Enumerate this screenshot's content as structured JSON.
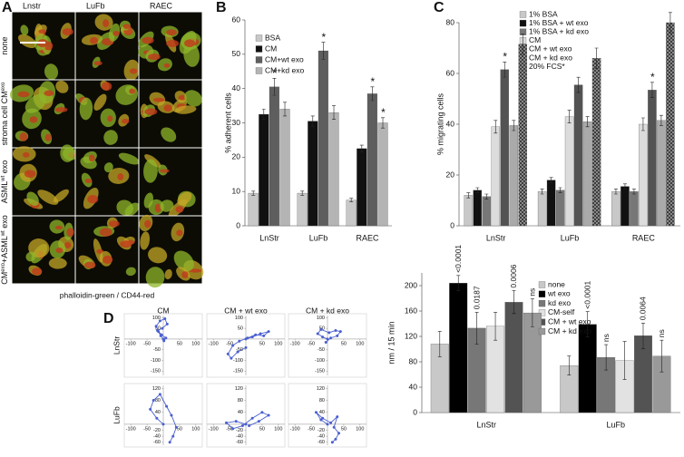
{
  "panel_letters": [
    "A",
    "B",
    "C",
    "D"
  ],
  "panel_a": {
    "columns": [
      "Lnstr",
      "LuFb",
      "RAEC"
    ],
    "rows": [
      [
        {
          "text": "none"
        }
      ],
      [
        {
          "text": "stroma cell CM"
        },
        {
          "sup": "exo"
        }
      ],
      [
        {
          "text": "ASML"
        },
        {
          "sup": "wt"
        },
        {
          "text": " exo"
        }
      ],
      [
        {
          "text": "CM"
        },
        {
          "sup": "exo"
        },
        {
          "text": "+ASML"
        },
        {
          "sup": "wt"
        },
        {
          "text": " exo"
        }
      ]
    ],
    "caption": "phalloidin-green / CD44-red"
  },
  "panel_d": {
    "columns": [
      "CM",
      "CM + wt exo",
      "CM + kd exo"
    ],
    "rows": [
      "LnStr",
      "LuFb"
    ]
  },
  "chart_data": [
    {
      "type": "bar",
      "ylabel": "% adherent cells",
      "categories": [
        "LnStr",
        "LuFb",
        "RAEC"
      ],
      "ylim": [
        0,
        60
      ],
      "yticks": [
        0,
        10,
        20,
        30,
        40,
        50,
        60
      ],
      "legend": "upper left",
      "series": [
        {
          "name": "BSA",
          "color": "#c8c8c8",
          "values": [
            9.5,
            9.5,
            7.5
          ],
          "errors": [
            0.6,
            0.6,
            0.5
          ]
        },
        {
          "name": "CM",
          "color": "#111111",
          "values": [
            32.5,
            30.5,
            22.5
          ],
          "errors": [
            1.5,
            1.5,
            1.0
          ]
        },
        {
          "name": "CM+wt exo",
          "color": "#777777",
          "pattern": "stripes",
          "values": [
            40.5,
            51,
            38.5
          ],
          "errors": [
            2.5,
            2.5,
            2.0
          ]
        },
        {
          "name": "CM+kd exo",
          "color": "#b4b4b4",
          "values": [
            34,
            33,
            30
          ],
          "errors": [
            2.0,
            2.0,
            1.5
          ]
        }
      ],
      "stars": [
        {
          "series": 2,
          "category": 0,
          "text": "*"
        },
        {
          "series": 2,
          "category": 1,
          "text": "*"
        },
        {
          "series": 2,
          "category": 2,
          "text": "*"
        },
        {
          "series": 3,
          "category": 2,
          "text": "*"
        }
      ]
    },
    {
      "type": "bar",
      "ylabel": "% migrating cells",
      "categories": [
        "LnStr",
        "LuFb",
        "RAEC"
      ],
      "ylim": [
        0,
        80
      ],
      "yticks": [
        0,
        20,
        40,
        60,
        80
      ],
      "legend": "upper left",
      "series": [
        {
          "name": "1% BSA",
          "color": "#c8c8c8",
          "values": [
            12,
            13.5,
            13.5
          ],
          "errors": [
            1,
            1,
            1
          ]
        },
        {
          "name": "1% BSA + wt exo",
          "color": "#111111",
          "values": [
            14,
            18,
            15.5
          ],
          "errors": [
            1,
            1,
            1
          ]
        },
        {
          "name": "1% BSA + kd exo",
          "color": "#777777",
          "values": [
            11.5,
            14,
            13.5
          ],
          "errors": [
            1,
            1,
            1
          ]
        },
        {
          "name": "CM",
          "color": "#dcdcdc",
          "values": [
            39,
            43,
            40
          ],
          "errors": [
            2.5,
            2.5,
            2.5
          ]
        },
        {
          "name": "CM + wt exo",
          "color": "#666666",
          "pattern": "stripes",
          "values": [
            61.5,
            55.5,
            53.5
          ],
          "errors": [
            3,
            3,
            3
          ]
        },
        {
          "name": "CM + kd exo",
          "color": "#aaaaaa",
          "values": [
            39.5,
            41,
            41.5
          ],
          "errors": [
            2,
            2,
            2
          ]
        },
        {
          "name": "20% FCS*",
          "color": "#333333",
          "pattern": "crosshatch",
          "values": [
            71.5,
            66,
            80
          ],
          "errors": [
            4,
            4,
            4
          ]
        }
      ],
      "stars": [
        {
          "series": 4,
          "category": 0,
          "text": "*"
        },
        {
          "series": 4,
          "category": 2,
          "text": "*"
        }
      ]
    },
    {
      "type": "bar",
      "ylabel": "nm / 15 min",
      "categories": [
        "LnStr",
        "LuFb"
      ],
      "ylim": [
        0,
        220
      ],
      "yticks": [
        0,
        40,
        80,
        120,
        160,
        200
      ],
      "legend": "upper right",
      "series": [
        {
          "name": "none",
          "color": "#c8c8c8",
          "values": [
            108,
            74
          ],
          "errors": [
            20,
            15
          ]
        },
        {
          "name": "wt exo",
          "color": "#000000",
          "values": [
            204,
            139
          ],
          "errors": [
            12,
            20
          ]
        },
        {
          "name": "kd exo",
          "color": "#777777",
          "values": [
            133,
            87
          ],
          "errors": [
            25,
            20
          ]
        },
        {
          "name": "CM-self",
          "color": "#e2e2e2",
          "values": [
            136,
            82
          ],
          "errors": [
            22,
            30
          ]
        },
        {
          "name": "CM + wt exo",
          "color": "#666666",
          "pattern": "stripes",
          "values": [
            174,
            121
          ],
          "errors": [
            18,
            20
          ]
        },
        {
          "name": "CM + kd exo",
          "color": "#999999",
          "values": [
            157,
            89
          ],
          "errors": [
            22,
            25
          ]
        }
      ],
      "annotations": [
        {
          "series": 1,
          "category": 0,
          "text": "<0.0001"
        },
        {
          "series": 2,
          "category": 0,
          "text": "0.0187"
        },
        {
          "series": 4,
          "category": 0,
          "text": "0.0006"
        },
        {
          "series": 5,
          "category": 0,
          "text": "ns"
        },
        {
          "series": 1,
          "category": 1,
          "text": "<0.0001"
        },
        {
          "series": 2,
          "category": 1,
          "text": "ns"
        },
        {
          "series": 4,
          "category": 1,
          "text": "0.0064"
        },
        {
          "series": 5,
          "category": 1,
          "text": "ns"
        }
      ]
    },
    {
      "type": "line",
      "xlim": [
        -120,
        120
      ],
      "ylim": [
        -170,
        110
      ],
      "xticks": [
        -100,
        -50,
        50,
        100
      ],
      "yticks": [
        100,
        50,
        -50,
        -100,
        -150
      ],
      "x": [
        0,
        -8,
        -15,
        -22,
        -10,
        5,
        12,
        -3,
        -18,
        -5,
        8,
        2
      ],
      "series": [
        {
          "color": "#4a5fd0",
          "values": [
            0,
            15,
            35,
            60,
            85,
            95,
            70,
            50,
            40,
            20,
            5,
            -8
          ]
        }
      ]
    },
    {
      "type": "line",
      "xlim": [
        -120,
        120
      ],
      "ylim": [
        -170,
        110
      ],
      "xticks": [
        -100,
        -50,
        50,
        100
      ],
      "yticks": [
        100,
        50,
        -50,
        -100,
        -150
      ],
      "x": [
        0,
        20,
        45,
        70,
        55,
        30,
        5,
        -20,
        -40,
        -55,
        -45,
        -25,
        0
      ],
      "series": [
        {
          "color": "#4a5fd0",
          "values": [
            0,
            10,
            25,
            35,
            15,
            20,
            5,
            -10,
            -30,
            -70,
            -90,
            -60,
            -40
          ]
        }
      ]
    },
    {
      "type": "line",
      "xlim": [
        -120,
        120
      ],
      "ylim": [
        -170,
        110
      ],
      "xticks": [
        -100,
        -50,
        50,
        100
      ],
      "yticks": [
        100,
        50,
        -50,
        -100,
        -150
      ],
      "x": [
        0,
        -15,
        -30,
        -20,
        5,
        25,
        40,
        30,
        10,
        -5
      ],
      "series": [
        {
          "color": "#4a5fd0",
          "values": [
            0,
            10,
            25,
            45,
            30,
            40,
            35,
            15,
            5,
            -15
          ]
        }
      ]
    },
    {
      "type": "line",
      "xlim": [
        -120,
        120
      ],
      "ylim": [
        -70,
        130
      ],
      "xticks": [
        -100,
        -50,
        50,
        100
      ],
      "yticks": [
        120,
        80,
        40,
        -20,
        -40,
        -60
      ],
      "x": [
        0,
        -20,
        -40,
        -30,
        -10,
        10,
        25,
        40,
        30,
        20
      ],
      "series": [
        {
          "color": "#4a5fd0",
          "values": [
            0,
            20,
            50,
            80,
            100,
            60,
            30,
            -10,
            -40,
            -60
          ]
        }
      ]
    },
    {
      "type": "line",
      "xlim": [
        -120,
        120
      ],
      "ylim": [
        -70,
        130
      ],
      "xticks": [
        -100,
        -50,
        50,
        100
      ],
      "yticks": [
        120,
        80,
        40,
        -20,
        -40,
        -60
      ],
      "x": [
        0,
        -30,
        -60,
        -40,
        -10,
        20,
        50,
        70,
        40,
        10
      ],
      "series": [
        {
          "color": "#4a5fd0",
          "values": [
            0,
            10,
            5,
            -15,
            -5,
            20,
            40,
            30,
            10,
            -5
          ]
        }
      ]
    },
    {
      "type": "line",
      "xlim": [
        -120,
        120
      ],
      "ylim": [
        -70,
        130
      ],
      "xticks": [
        -100,
        -50,
        50,
        100
      ],
      "yticks": [
        120,
        80,
        40,
        -20,
        -40,
        -60
      ],
      "x": [
        0,
        -20,
        -35,
        -15,
        10,
        30,
        20,
        35,
        25,
        15
      ],
      "series": [
        {
          "color": "#4a5fd0",
          "values": [
            0,
            15,
            40,
            20,
            5,
            25,
            -10,
            -30,
            -50,
            -60
          ]
        }
      ]
    }
  ]
}
